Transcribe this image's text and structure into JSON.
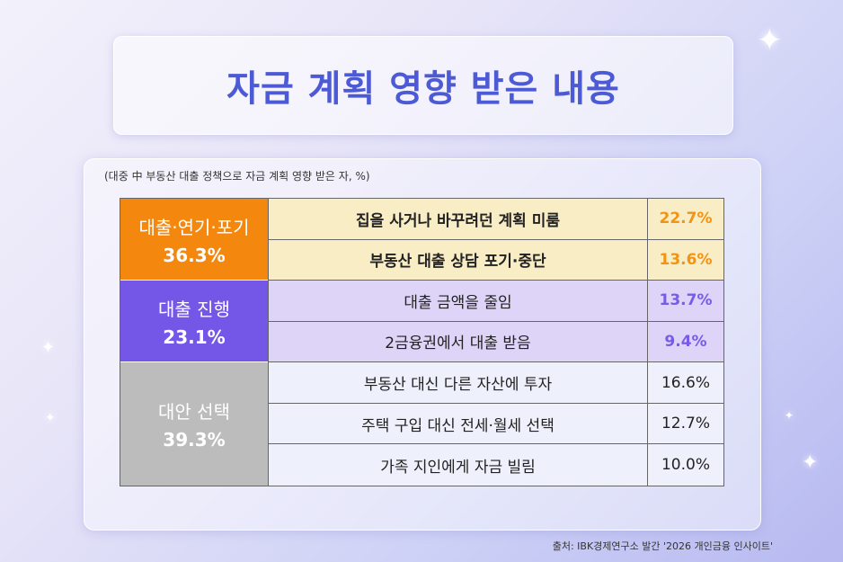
{
  "title": "자금 계획 영향 받은 내용",
  "subtitle": "(대중 中 부동산 대출 정책으로 자금 계획 영향 받은 자, %)",
  "source": "출처: IBK경제연구소 발간 '2026 개인금융 인사이트'",
  "colors": {
    "orange": "#f4880f",
    "purple": "#7457e6",
    "gray": "#bcbcbc",
    "title": "#4d5ad6"
  },
  "groups": [
    {
      "name": "대출·연기·포기",
      "value": "36.3%"
    },
    {
      "name": "대출 진행",
      "value": "23.1%"
    },
    {
      "name": "대안 선택",
      "value": "39.3%"
    }
  ],
  "rows": [
    {
      "label": "집을 사거나 바꾸려던 계획 미룸",
      "pct": "22.7%"
    },
    {
      "label": "부동산 대출 상담 포기·중단",
      "pct": "13.6%"
    },
    {
      "label": "대출 금액을 줄임",
      "pct": "13.7%"
    },
    {
      "label": "2금융권에서 대출 받음",
      "pct": "9.4%"
    },
    {
      "label": "부동산 대신 다른 자산에 투자",
      "pct": "16.6%"
    },
    {
      "label": "주택 구입 대신 전세·월세 선택",
      "pct": "12.7%"
    },
    {
      "label": "가족 지인에게 자금 빌림",
      "pct": "10.0%"
    }
  ],
  "chart_data": {
    "type": "table",
    "title": "자금 계획 영향 받은 내용",
    "subtitle": "(대중 中 부동산 대출 정책으로 자금 계획 영향 받은 자, %)",
    "groups": [
      {
        "name": "대출·연기·포기",
        "total": 36.3,
        "items": [
          {
            "label": "집을 사거나 바꾸려던 계획 미룸",
            "value": 22.7
          },
          {
            "label": "부동산 대출 상담 포기·중단",
            "value": 13.6
          }
        ]
      },
      {
        "name": "대출 진행",
        "total": 23.1,
        "items": [
          {
            "label": "대출 금액을 줄임",
            "value": 13.7
          },
          {
            "label": "2금융권에서 대출 받음",
            "value": 9.4
          }
        ]
      },
      {
        "name": "대안 선택",
        "total": 39.3,
        "items": [
          {
            "label": "부동산 대신 다른 자산에 투자",
            "value": 16.6
          },
          {
            "label": "주택 구입 대신 전세·월세 선택",
            "value": 12.7
          },
          {
            "label": "가족 지인에게 자금 빌림",
            "value": 10.0
          }
        ]
      }
    ]
  }
}
